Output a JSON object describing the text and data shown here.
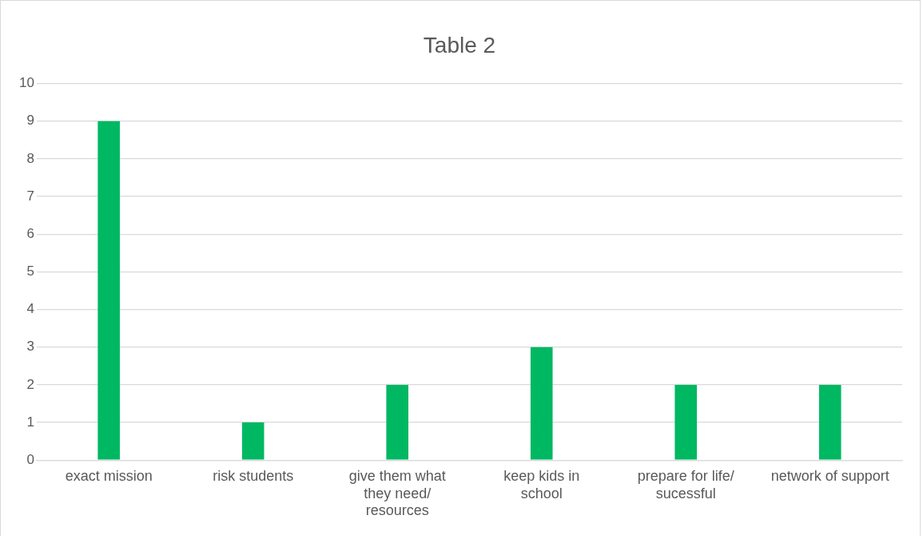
{
  "chart_data": {
    "type": "bar",
    "title": "Table 2",
    "categories": [
      "exact mission",
      "risk students",
      "give them what they need/ resources",
      "keep kids in school",
      "prepare for life/ sucessful",
      "network of support"
    ],
    "values": [
      9,
      1,
      2,
      3,
      2,
      2
    ],
    "color": "#00b862",
    "ylim": [
      0,
      10
    ],
    "yticks": [
      0,
      1,
      2,
      3,
      4,
      5,
      6,
      7,
      8,
      9,
      10
    ],
    "grid": "y",
    "legend": false
  }
}
